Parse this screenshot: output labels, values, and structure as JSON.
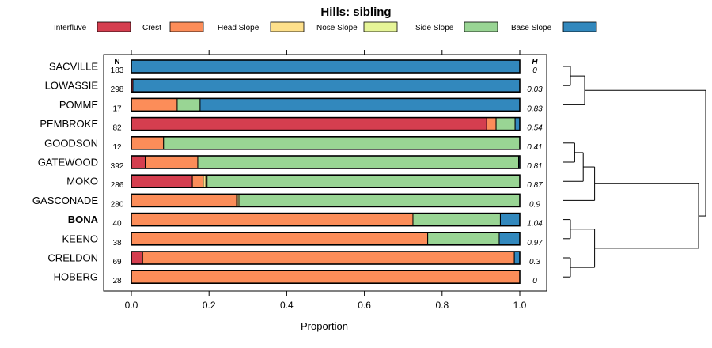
{
  "chart_data": {
    "type": "bar",
    "stacked": true,
    "orientation": "horizontal",
    "title": "Hills: sibling",
    "xlabel": "Proportion",
    "xlim": [
      0,
      1
    ],
    "xticks": [
      "0.0",
      "0.2",
      "0.4",
      "0.6",
      "0.8",
      "1.0"
    ],
    "xtick_values": [
      0,
      0.2,
      0.4,
      0.6,
      0.8,
      1.0
    ],
    "n_header": "N",
    "h_header": "H",
    "legend": [
      {
        "name": "Interfluve",
        "color": "#D53E4F"
      },
      {
        "name": "Crest",
        "color": "#FC8D59"
      },
      {
        "name": "Head Slope",
        "color": "#FEE08B"
      },
      {
        "name": "Nose Slope",
        "color": "#E6F598"
      },
      {
        "name": "Side Slope",
        "color": "#99D594"
      },
      {
        "name": "Base Slope",
        "color": "#3288BD"
      }
    ],
    "rows": [
      {
        "name": "SACVILLE",
        "n": "183",
        "h": "0",
        "bold": false,
        "values": [
          0,
          0,
          0,
          0,
          0,
          1.0
        ]
      },
      {
        "name": "LOWASSIE",
        "n": "298",
        "h": "0.03",
        "bold": false,
        "values": [
          0.004,
          0,
          0,
          0,
          0,
          0.996
        ]
      },
      {
        "name": "POMME",
        "n": "17",
        "h": "0.83",
        "bold": false,
        "values": [
          0,
          0.118,
          0,
          0,
          0.059,
          0.823
        ]
      },
      {
        "name": "PEMBROKE",
        "n": "82",
        "h": "0.54",
        "bold": false,
        "values": [
          0.915,
          0.024,
          0,
          0,
          0.049,
          0.012
        ]
      },
      {
        "name": "GOODSON",
        "n": "12",
        "h": "0.41",
        "bold": false,
        "values": [
          0,
          0.083,
          0,
          0,
          0.917,
          0
        ]
      },
      {
        "name": "GATEWOOD",
        "n": "392",
        "h": "0.81",
        "bold": false,
        "values": [
          0.036,
          0.135,
          0,
          0,
          0.826,
          0.003
        ]
      },
      {
        "name": "MOKO",
        "n": "286",
        "h": "0.87",
        "bold": false,
        "values": [
          0.157,
          0.028,
          0.007,
          0.003,
          0.805,
          0
        ]
      },
      {
        "name": "GASCONADE",
        "n": "280",
        "h": "0.9",
        "bold": false,
        "values": [
          0,
          0.271,
          0.004,
          0.004,
          0.721,
          0
        ]
      },
      {
        "name": "BONA",
        "n": "40",
        "h": "1.04",
        "bold": true,
        "values": [
          0,
          0.725,
          0,
          0,
          0.225,
          0.05
        ]
      },
      {
        "name": "KEENO",
        "n": "38",
        "h": "0.97",
        "bold": false,
        "values": [
          0,
          0.763,
          0,
          0,
          0.184,
          0.053
        ]
      },
      {
        "name": "CRELDON",
        "n": "69",
        "h": "0.3",
        "bold": false,
        "values": [
          0.029,
          0.957,
          0,
          0,
          0,
          0.014
        ]
      },
      {
        "name": "HOBERG",
        "n": "28",
        "h": "0",
        "bold": false,
        "values": [
          0,
          1.0,
          0,
          0,
          0,
          0
        ]
      }
    ],
    "dendrogram": {
      "description": "hierarchical clustering of the soil series",
      "merges": [
        [
          "SACVILLE",
          "LOWASSIE",
          0.05
        ],
        [
          "SACVILLE+LOWASSIE",
          "POMME",
          0.15
        ],
        [
          "GOODSON",
          "GATEWOOD",
          0.08
        ],
        [
          "GOODSON+GATEWOOD",
          "MOKO",
          0.14
        ],
        [
          "GOODSON+GATEWOOD+MOKO",
          "GASCONADE",
          0.22
        ],
        [
          "BONA",
          "KEENO",
          0.05
        ],
        [
          "CRELDON",
          "HOBERG",
          0.05
        ],
        [
          "BONA+KEENO",
          "CRELDON+HOBERG",
          0.22
        ],
        [
          "GOODSON..GASCONADE",
          "BONA..HOBERG",
          0.95
        ],
        [
          "SACVILLE+LOWASSIE+POMME",
          "ALL_LOWER",
          1.0
        ]
      ]
    }
  }
}
